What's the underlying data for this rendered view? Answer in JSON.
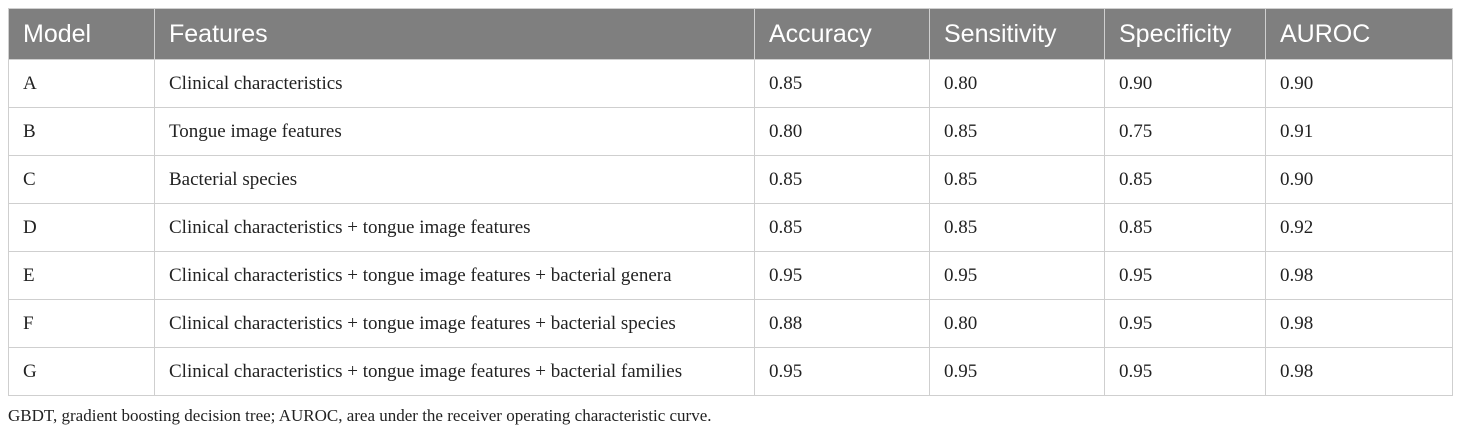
{
  "table": {
    "headers": [
      "Model",
      "Features",
      "Accuracy",
      "Sensitivity",
      "Specificity",
      "AUROC"
    ],
    "rows": [
      [
        "A",
        "Clinical characteristics",
        "0.85",
        "0.80",
        "0.90",
        "0.90"
      ],
      [
        "B",
        "Tongue image features",
        "0.80",
        "0.85",
        "0.75",
        "0.91"
      ],
      [
        "C",
        "Bacterial species",
        "0.85",
        "0.85",
        "0.85",
        "0.90"
      ],
      [
        "D",
        "Clinical characteristics + tongue image features",
        "0.85",
        "0.85",
        "0.85",
        "0.92"
      ],
      [
        "E",
        "Clinical characteristics + tongue image features + bacterial genera",
        "0.95",
        "0.95",
        "0.95",
        "0.98"
      ],
      [
        "F",
        "Clinical characteristics + tongue image features + bacterial species",
        "0.88",
        "0.80",
        "0.95",
        "0.98"
      ],
      [
        "G",
        "Clinical characteristics + tongue image features + bacterial families",
        "0.95",
        "0.95",
        "0.95",
        "0.98"
      ]
    ]
  },
  "footnote": "GBDT, gradient boosting decision tree; AUROC, area under the receiver operating characteristic curve.",
  "colors": {
    "header_background": "#7f7f7f",
    "header_text": "#ffffff",
    "border": "#cfcfcf"
  }
}
